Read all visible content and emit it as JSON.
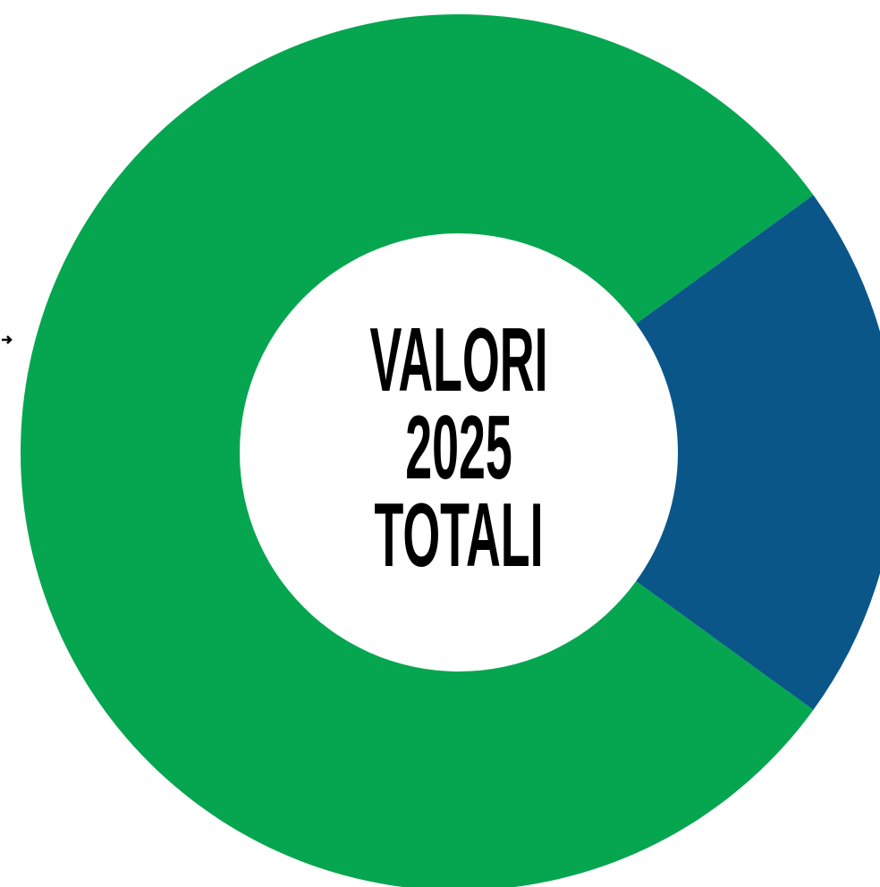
{
  "chart_data": {
    "type": "pie",
    "center_label": [
      "VALORI",
      "2025",
      "TOTALI"
    ],
    "values": [
      20,
      80
    ],
    "colors": [
      "#0b5689",
      "#05a64f"
    ],
    "hole": 0.5
  }
}
